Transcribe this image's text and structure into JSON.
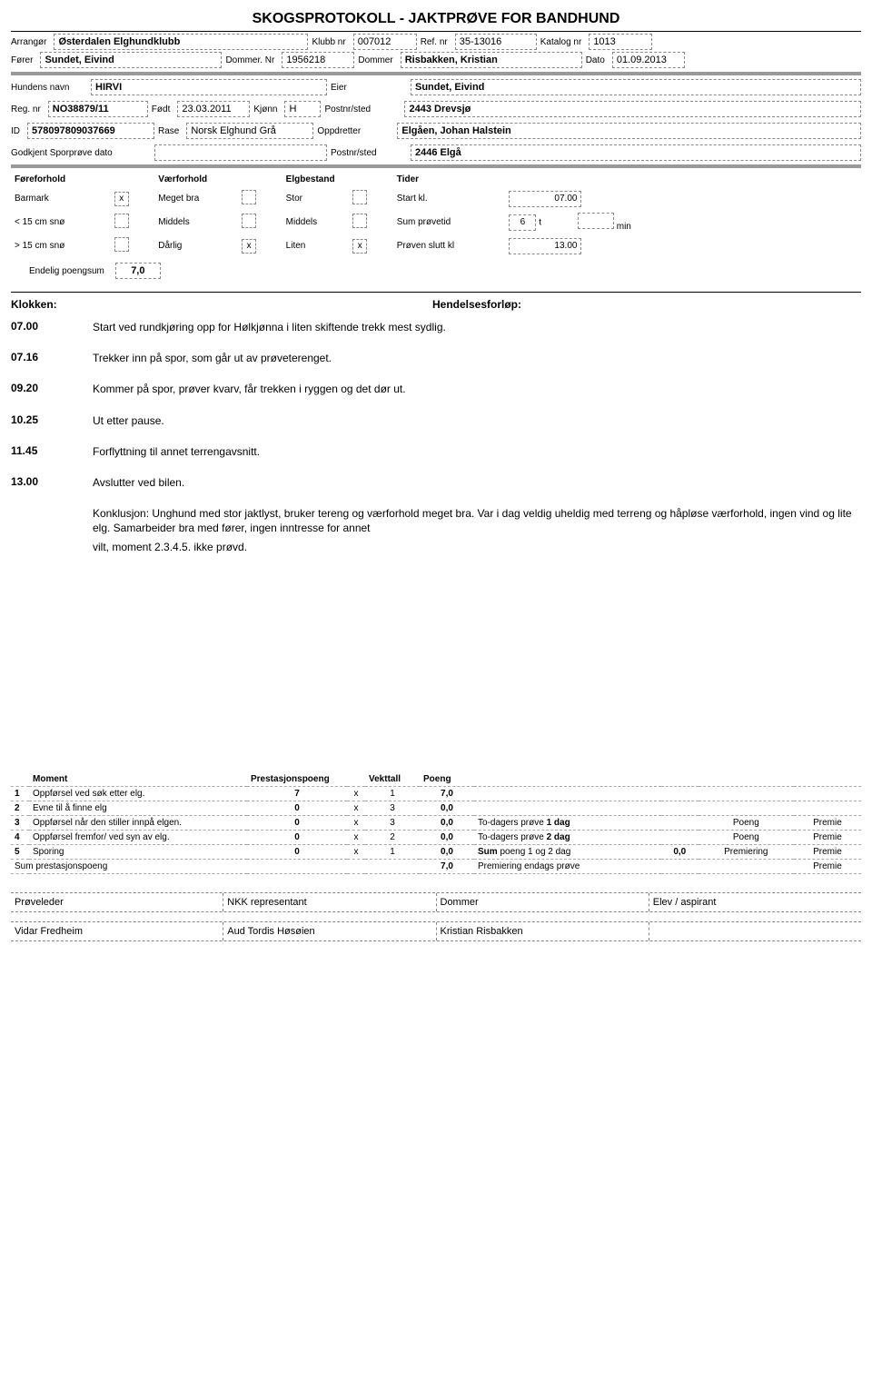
{
  "title": "SKOGSPROTOKOLL - JAKTPRØVE FOR BANDHUND",
  "header": {
    "arrangor_lbl": "Arrangør",
    "arrangor": "Østerdalen Elghundklubb",
    "klubbnr_lbl": "Klubb nr",
    "klubbnr": "007012",
    "refnr_lbl": "Ref. nr",
    "refnr": "35-13016",
    "katalognr_lbl": "Katalog nr",
    "katalognr": "1013",
    "forer_lbl": "Fører",
    "forer": "Sundet, Eivind",
    "dommernr_lbl": "Dommer. Nr",
    "dommernr": "1956218",
    "dommer_lbl": "Dommer",
    "dommer": "Risbakken, Kristian",
    "dato_lbl": "Dato",
    "dato": "01.09.2013"
  },
  "dog": {
    "navn_lbl": "Hundens navn",
    "navn": "HIRVI",
    "eier_lbl": "Eier",
    "eier": "Sundet, Eivind",
    "regnr_lbl": "Reg. nr",
    "regnr": "NO38879/11",
    "fodt_lbl": "Født",
    "fodt": "23.03.2011",
    "kjonn_lbl": "Kjønn",
    "kjonn": "H",
    "postnr1_lbl": "Postnr/sted",
    "postnr1": "2443 Drevsjø",
    "id_lbl": "ID",
    "id": "578097809037669",
    "rase_lbl": "Rase",
    "rase": "Norsk Elghund Grå",
    "oppdretter_lbl": "Oppdretter",
    "oppdretter": "Elgåen, Johan Halstein",
    "sporprove_lbl": "Godkjent Sporprøve dato",
    "postnr2_lbl": "Postnr/sted",
    "postnr2": "2446 Elgå"
  },
  "cond": {
    "fore_lbl": "Føreforhold",
    "vaer_lbl": "Værforhold",
    "elg_lbl": "Elgbestand",
    "tider_lbl": "Tider",
    "barmark": "Barmark",
    "barmark_x": "x",
    "meget": "Meget bra",
    "stor": "Stor",
    "startkl_lbl": "Start kl.",
    "startkl": "07.00",
    "lt15": "< 15 cm snø",
    "middels1": "Middels",
    "middels2": "Middels",
    "sum_lbl": "Sum prøvetid",
    "sum_h": "6",
    "sum_t": "t",
    "sum_min": "min",
    "gt15": "> 15 cm snø",
    "darlig": "Dårlig",
    "darlig_x": "x",
    "liten": "Liten",
    "liten_x": "x",
    "slutt_lbl": "Prøven slutt kl",
    "slutt": "13.00",
    "endelig_lbl": "Endelig poengsum",
    "endelig": "7,0"
  },
  "hendelse": {
    "kl_lbl": "Klokken:",
    "forlop_lbl": "Hendelsesforløp:",
    "rows": [
      {
        "kl": "07.00",
        "txt": "Start ved rundkjøring opp for Hølkjønna i liten skiftende trekk mest sydlig."
      },
      {
        "kl": "07.16",
        "txt": "Trekker inn på spor, som går ut av prøveterenget."
      },
      {
        "kl": "09.20",
        "txt": "Kommer på spor, prøver kvarv, får trekken i ryggen og det dør ut."
      },
      {
        "kl": "10.25",
        "txt": "Ut etter pause."
      },
      {
        "kl": "11.45",
        "txt": "Forflyttning til annet terrengavsnitt."
      },
      {
        "kl": "13.00",
        "txt": "Avslutter ved bilen."
      },
      {
        "kl": "",
        "txt": "Konklusjon: Unghund med stor jaktlyst, bruker tereng og værforhold meget bra. Var i dag veldig uheldig med terreng og håpløse værforhold, ingen vind og lite elg. Samarbeider bra med fører, ingen inntresse for annet"
      },
      {
        "kl": "",
        "txt": "vilt, moment 2.3.4.5. ikke prøvd."
      }
    ]
  },
  "moment": {
    "head": {
      "moment": "Moment",
      "prest": "Prestasjonspoeng",
      "vekt": "Vekttall",
      "poeng": "Poeng"
    },
    "rows": [
      {
        "n": "1",
        "txt": "Oppførsel ved søk etter elg.",
        "p": "7",
        "x": "x",
        "v": "1",
        "pg": "7,0"
      },
      {
        "n": "2",
        "txt": "Evne til å finne elg",
        "p": "0",
        "x": "x",
        "v": "3",
        "pg": "0,0"
      },
      {
        "n": "3",
        "txt": "Oppførsel når den stiller innpå elgen.",
        "p": "0",
        "x": "x",
        "v": "3",
        "pg": "0,0"
      },
      {
        "n": "4",
        "txt": "Oppførsel fremfor/ ved syn av elg.",
        "p": "0",
        "x": "x",
        "v": "2",
        "pg": "0,0"
      },
      {
        "n": "5",
        "txt": "Sporing",
        "p": "0",
        "x": "x",
        "v": "1",
        "pg": "0,0"
      }
    ],
    "sum_lbl": "Sum prestasjonspoeng",
    "sum": "7,0",
    "side": {
      "to1_lbl": "To-dagers prøve",
      "dag1": "1 dag",
      "poeng_lbl": "Poeng",
      "premie_lbl": "Premie",
      "to2_lbl": "To-dagers prøve",
      "dag2": "2 dag",
      "sum_lbl": "Sum",
      "sum_txt": "poeng 1 og 2 dag",
      "sum_val": "0,0",
      "premiering_lbl": "Premiering",
      "endags_lbl": "Premiering endags prøve"
    }
  },
  "sig": {
    "proveleder_lbl": "Prøveleder",
    "nkk_lbl": "NKK representant",
    "dommer_lbl": "Dommer",
    "elev_lbl": "Elev / aspirant",
    "proveleder": "Vidar Fredheim",
    "nkk": "Aud Tordis Høsøien",
    "dommer": "Kristian Risbakken"
  }
}
